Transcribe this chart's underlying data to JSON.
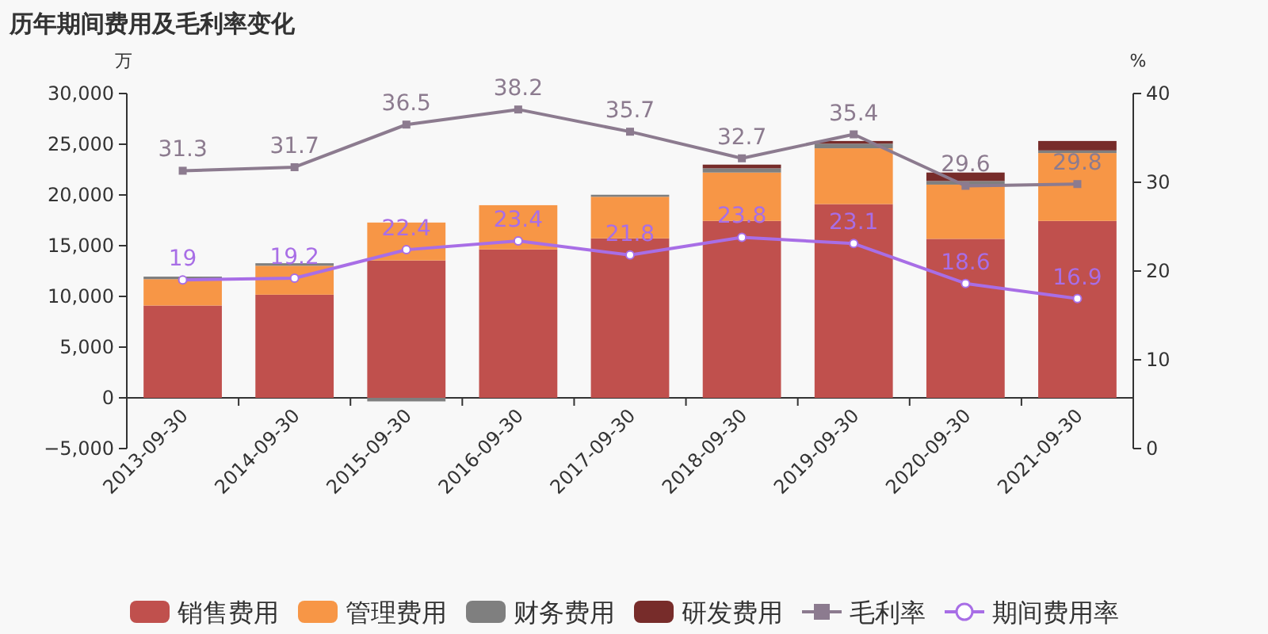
{
  "chart_data": {
    "type": "bar",
    "title": "历年期间费用及毛利率变化",
    "ylabel": "万",
    "y2label": "%",
    "categories": [
      "2013-09-30",
      "2014-09-30",
      "2015-09-30",
      "2016-09-30",
      "2017-09-30",
      "2018-09-30",
      "2019-09-30",
      "2020-09-30",
      "2021-09-30"
    ],
    "stacked": true,
    "series": [
      {
        "name": "销售费用",
        "color": "#c0504d",
        "values": [
          9100,
          10170,
          13540,
          14630,
          15720,
          17440,
          19100,
          15670,
          17440
        ]
      },
      {
        "name": "管理费用",
        "color": "#f79646",
        "values": [
          2600,
          2850,
          3740,
          4360,
          4100,
          4770,
          5500,
          5350,
          6690
        ]
      },
      {
        "name": "财务费用",
        "color": "#7f7f7f",
        "values": [
          250,
          250,
          -350,
          0,
          200,
          420,
          460,
          360,
          260
        ]
      },
      {
        "name": "研发费用",
        "color": "#772c2a",
        "values": [
          0,
          0,
          0,
          0,
          0,
          360,
          260,
          830,
          930
        ]
      },
      {
        "name": "毛利率",
        "type": "line",
        "axis": "y2",
        "color": "#8c7b8f",
        "marker": "square",
        "data_labels": true,
        "values": [
          31.3,
          31.7,
          36.5,
          38.2,
          35.7,
          32.7,
          35.4,
          29.6,
          29.8
        ]
      },
      {
        "name": "期间费用率",
        "type": "line",
        "axis": "y2",
        "color": "#a86ee6",
        "marker": "circle",
        "data_labels": true,
        "values": [
          19,
          19.2,
          22.4,
          23.4,
          21.8,
          23.8,
          23.1,
          18.6,
          16.9
        ]
      }
    ],
    "ylim": [
      -5000,
      30000
    ],
    "yticks": [
      {
        "value": -5000,
        "label": "−5,000"
      },
      0,
      {
        "value": 5000,
        "label": "5,000"
      },
      {
        "value": 10000,
        "label": "10,000"
      },
      {
        "value": 15000,
        "label": "15,000"
      },
      {
        "value": 20000,
        "label": "20,000"
      },
      {
        "value": 25000,
        "label": "25,000"
      },
      {
        "value": 30000,
        "label": "30,000"
      }
    ],
    "y2lim": [
      0,
      40
    ],
    "y2ticks": [
      0,
      10,
      20,
      30,
      40
    ],
    "legend": "bottom",
    "grid": false
  }
}
